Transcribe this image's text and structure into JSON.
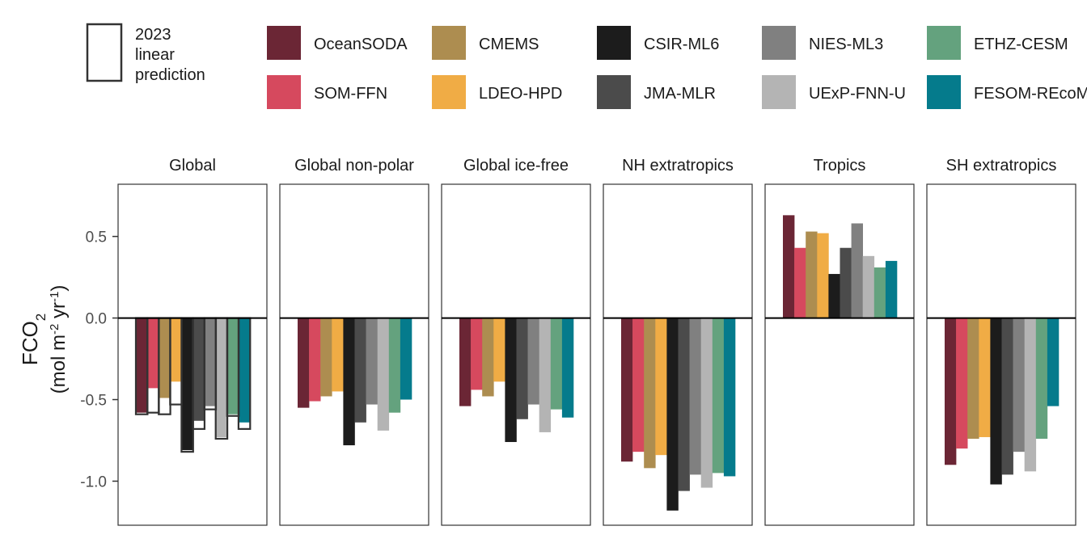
{
  "chart_data": {
    "type": "bar",
    "ylabel_main": "FCO",
    "ylabel_main_sub": "2",
    "ylabel_unit_open": "(mol m",
    "ylabel_unit_sup1": "-2",
    "ylabel_unit_mid": " yr",
    "ylabel_unit_sup2": "-1",
    "ylabel_unit_close": ")",
    "ylim": [
      -1.27,
      0.82
    ],
    "yticks": [
      {
        "value": 0.5,
        "label": "0.5"
      },
      {
        "value": 0.0,
        "label": "0.0"
      },
      {
        "value": -0.5,
        "label": "-0.5"
      },
      {
        "value": -1.0,
        "label": "-1.0"
      }
    ],
    "legend": {
      "prediction_label_lines": [
        "2023",
        "linear",
        "prediction"
      ],
      "placement": "top"
    },
    "series": [
      {
        "name": "OceanSODA",
        "color": "#6b2635"
      },
      {
        "name": "SOM-FFN",
        "color": "#d6495e"
      },
      {
        "name": "CMEMS",
        "color": "#ad8d50"
      },
      {
        "name": "LDEO-HPD",
        "color": "#f0ac45"
      },
      {
        "name": "CSIR-ML6",
        "color": "#1c1c1c"
      },
      {
        "name": "JMA-MLR",
        "color": "#4b4b4b"
      },
      {
        "name": "NIES-ML3",
        "color": "#808080"
      },
      {
        "name": "UExP-FNN-U",
        "color": "#b4b4b4"
      },
      {
        "name": "ETHZ-CESM",
        "color": "#64a27e"
      },
      {
        "name": "FESOM-REcoM",
        "color": "#057b8c"
      }
    ],
    "panels": [
      {
        "title": "Global",
        "values": [
          -0.58,
          -0.43,
          -0.49,
          -0.39,
          -0.81,
          -0.63,
          -0.54,
          -0.73,
          -0.59,
          -0.64
        ],
        "predictions": [
          -0.59,
          -0.58,
          -0.59,
          -0.53,
          -0.82,
          -0.68,
          -0.56,
          -0.74,
          -0.6,
          -0.68
        ]
      },
      {
        "title": "Global non-polar",
        "values": [
          -0.55,
          -0.51,
          -0.48,
          -0.45,
          -0.78,
          -0.64,
          -0.53,
          -0.69,
          -0.58,
          -0.5
        ]
      },
      {
        "title": "Global ice-free",
        "values": [
          -0.54,
          -0.44,
          -0.48,
          -0.39,
          -0.76,
          -0.62,
          -0.53,
          -0.7,
          -0.56,
          -0.61
        ]
      },
      {
        "title": "NH extratropics",
        "values": [
          -0.88,
          -0.82,
          -0.92,
          -0.84,
          -1.18,
          -1.06,
          -0.96,
          -1.04,
          -0.95,
          -0.97
        ]
      },
      {
        "title": "Tropics",
        "values": [
          0.63,
          0.43,
          0.53,
          0.52,
          0.27,
          0.43,
          0.58,
          0.38,
          0.31,
          0.35
        ]
      },
      {
        "title": "SH extratropics",
        "values": [
          -0.9,
          -0.8,
          -0.74,
          -0.73,
          -1.02,
          -0.96,
          -0.82,
          -0.94,
          -0.74,
          -0.54
        ]
      }
    ]
  }
}
